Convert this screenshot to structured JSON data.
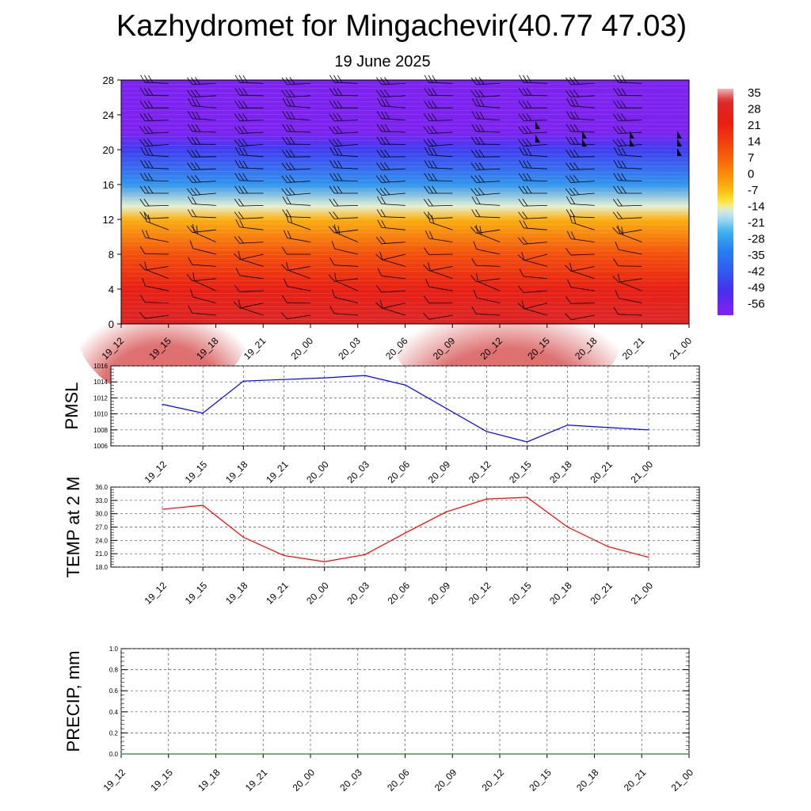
{
  "header": {
    "title": "Kazhydromet for Mingachevir(40.77 47.03)",
    "subtitle": "19 June 2025"
  },
  "time_labels": [
    "19_12",
    "19_15",
    "19_18",
    "19_21",
    "20_00",
    "20_03",
    "20_06",
    "20_09",
    "20_12",
    "20_15",
    "20_18",
    "20_21",
    "21_00"
  ],
  "chart_data": [
    {
      "type": "heatmap",
      "name_hint": "cross-section",
      "x": [
        "19_12",
        "19_15",
        "19_18",
        "19_21",
        "20_00",
        "20_03",
        "20_06",
        "20_09",
        "20_12",
        "20_15",
        "20_18",
        "20_21",
        "21_00"
      ],
      "y_ticks": [
        0,
        4,
        8,
        12,
        16,
        20,
        24,
        28
      ],
      "ylim": [
        0,
        28
      ],
      "colorbar": {
        "labels": [
          "35",
          "28",
          "21",
          "14",
          "7",
          "0",
          "-7",
          "-14",
          "-21",
          "-28",
          "-35",
          "-42",
          "-49",
          "-56"
        ],
        "colors": [
          "#f4b8b8",
          "#d61a1a",
          "#e82a10",
          "#ef3f0e",
          "#f45a0a",
          "#f88a08",
          "#fbb40d",
          "#fde53a",
          "#bfe8f5",
          "#38b0ea",
          "#2d7ff0",
          "#3a47ee",
          "#4a2cf0",
          "#7b22f0"
        ]
      },
      "levels_temperature": [
        {
          "height": 0,
          "temp": 30
        },
        {
          "height": 4,
          "temp": 22
        },
        {
          "height": 8,
          "temp": 10
        },
        {
          "height": 12,
          "temp": -5
        },
        {
          "height": 13.5,
          "temp": -14
        },
        {
          "height": 16,
          "temp": -28
        },
        {
          "height": 20,
          "temp": -45
        },
        {
          "height": 22,
          "temp": -56
        },
        {
          "height": 28,
          "temp": -56
        }
      ]
    },
    {
      "type": "line",
      "ylabel": "PMSL",
      "ylim": [
        1006,
        1016
      ],
      "y_ticks": [
        "1006",
        "1008",
        "1010",
        "1012",
        "1014",
        "1016"
      ],
      "categories": [
        "19_12",
        "19_15",
        "19_18",
        "19_21",
        "20_00",
        "20_03",
        "20_06",
        "20_09",
        "20_12",
        "20_15",
        "20_18",
        "20_21",
        "21_00"
      ],
      "series": [
        {
          "color": "#0000ff",
          "values": [
            1011.2,
            1010.1,
            1014.1,
            1014.3,
            1014.5,
            1014.8,
            1013.6,
            1010.7,
            1007.8,
            1006.5,
            1008.6,
            1008.3,
            1008.0
          ]
        }
      ]
    },
    {
      "type": "line",
      "ylabel": "TEMP at 2 M",
      "ylim": [
        18,
        36
      ],
      "y_ticks": [
        "18.0",
        "21.0",
        "24.0",
        "27.0",
        "30.0",
        "33.0",
        "36.0"
      ],
      "categories": [
        "19_12",
        "19_15",
        "19_18",
        "19_21",
        "20_00",
        "20_03",
        "20_06",
        "20_09",
        "20_12",
        "20_15",
        "20_18",
        "20_21",
        "21_00"
      ],
      "series": [
        {
          "color": "#ff0000",
          "values": [
            31.0,
            31.9,
            24.7,
            20.6,
            19.2,
            20.8,
            25.7,
            30.4,
            33.3,
            33.7,
            27.0,
            22.6,
            20.2
          ]
        }
      ]
    },
    {
      "type": "line",
      "ylabel": "PRECIP, mm",
      "ylim": [
        0,
        1
      ],
      "y_ticks": [
        "0.0",
        "0.2",
        "0.4",
        "0.6",
        "0.8",
        "1.0"
      ],
      "categories": [
        "19_12",
        "19_15",
        "19_18",
        "19_21",
        "20_00",
        "20_03",
        "20_06",
        "20_09",
        "20_12",
        "20_15",
        "20_18",
        "20_21",
        "21_00"
      ],
      "series": [
        {
          "color": "#2e7d32",
          "values": [
            0,
            0,
            0,
            0,
            0,
            0,
            0,
            0,
            0,
            0,
            0,
            0,
            0
          ]
        }
      ]
    }
  ]
}
